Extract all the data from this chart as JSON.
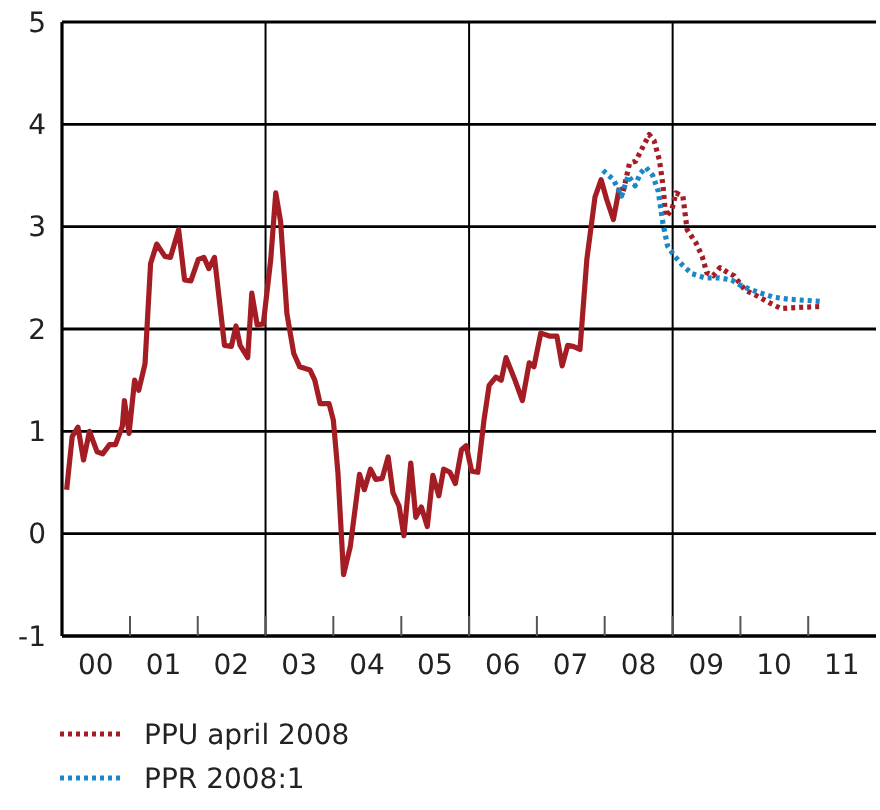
{
  "chart_data": {
    "type": "line",
    "ylim": [
      -1,
      5
    ],
    "yticks": [
      -1,
      0,
      1,
      2,
      3,
      4,
      5
    ],
    "xlim": [
      "2000-01-01",
      "2012-01-01"
    ],
    "xticks": [
      {
        "value": "2000-07-01",
        "label": "00"
      },
      {
        "value": "2001-01-01",
        "label": null
      },
      {
        "value": "2001-07-01",
        "label": "01"
      },
      {
        "value": "2002-01-01",
        "label": null
      },
      {
        "value": "2002-07-01",
        "label": "02"
      },
      {
        "value": "2003-01-01",
        "label": null
      },
      {
        "value": "2003-07-01",
        "label": "03"
      },
      {
        "value": "2004-01-01",
        "label": null
      },
      {
        "value": "2004-07-01",
        "label": "04"
      },
      {
        "value": "2005-01-01",
        "label": null
      },
      {
        "value": "2005-07-01",
        "label": "05"
      },
      {
        "value": "2006-01-01",
        "label": null
      },
      {
        "value": "2006-07-01",
        "label": "06"
      },
      {
        "value": "2007-01-01",
        "label": null
      },
      {
        "value": "2007-07-01",
        "label": "07"
      },
      {
        "value": "2008-01-01",
        "label": null
      },
      {
        "value": "2008-07-01",
        "label": "08"
      },
      {
        "value": "2009-01-01",
        "label": null
      },
      {
        "value": "2009-07-01",
        "label": "09"
      },
      {
        "value": "2010-01-01",
        "label": null
      },
      {
        "value": "2010-07-01",
        "label": "10"
      },
      {
        "value": "2011-01-01",
        "label": null
      },
      {
        "value": "2011-07-01",
        "label": "11"
      }
    ],
    "grid": "y",
    "legend": "bottom",
    "ref_lines": [
      {
        "axis": "x",
        "value": "2003-01-01",
        "color": "#000000"
      },
      {
        "axis": "x",
        "value": "2006-01-01",
        "color": "#000000"
      },
      {
        "axis": "x",
        "value": "2009-01-01",
        "color": "#000000"
      }
    ],
    "series": [
      {
        "color": "#a51d24",
        "line_style": "solid",
        "x": [
          "2000-01-26",
          "2000-02-25",
          "2000-03-27",
          "2000-04-26",
          "2000-05-28",
          "2000-07-08",
          "2000-08-07",
          "2000-09-13",
          "2000-10-15",
          "2000-11-21",
          "2000-12-02",
          "2000-12-27",
          "2001-01-26",
          "2001-02-17",
          "2001-03-23",
          "2001-04-22",
          "2001-05-25",
          "2001-07-08",
          "2001-08-07",
          "2001-09-20",
          "2001-10-22",
          "2001-11-25",
          "2002-01-04",
          "2002-02-03",
          "2002-03-02",
          "2002-04-01",
          "2002-05-25",
          "2002-07-01",
          "2002-07-26",
          "2002-08-17",
          "2002-09-27",
          "2002-10-19",
          "2002-11-17",
          "2002-12-20",
          "2003-01-29",
          "2003-02-25",
          "2003-03-23",
          "2003-04-26",
          "2003-06-02",
          "2003-07-04",
          "2003-08-28",
          "2003-09-23",
          "2003-10-22",
          "2003-12-09",
          "2004-01-01",
          "2004-01-26",
          "2004-02-25",
          "2004-04-01",
          "2004-05-21",
          "2004-06-16",
          "2004-07-19",
          "2004-08-17",
          "2004-09-20",
          "2004-10-22",
          "2004-11-17",
          "2004-12-20",
          "2005-01-15",
          "2005-02-21",
          "2005-03-20",
          "2005-04-19",
          "2005-05-21",
          "2005-06-20",
          "2005-07-22",
          "2005-08-17",
          "2005-09-20",
          "2005-10-19",
          "2005-11-21",
          "2005-12-16",
          "2006-01-15",
          "2006-02-17",
          "2006-03-23",
          "2006-04-19",
          "2006-05-25",
          "2006-06-23",
          "2006-07-19",
          "2006-09-05",
          "2006-10-15",
          "2006-11-21",
          "2006-12-16",
          "2007-01-22",
          "2007-03-13",
          "2007-04-19",
          "2007-05-17",
          "2007-06-16",
          "2007-07-15",
          "2007-08-21",
          "2007-09-27",
          "2007-11-10",
          "2007-12-13",
          "2008-01-11",
          "2008-02-17",
          "2008-03-20"
        ],
        "values": [
          0.43,
          0.95,
          1.04,
          0.72,
          1.0,
          0.8,
          0.78,
          0.87,
          0.87,
          1.05,
          1.3,
          0.98,
          1.5,
          1.4,
          1.66,
          2.64,
          2.83,
          2.71,
          2.7,
          2.97,
          2.48,
          2.47,
          2.68,
          2.7,
          2.59,
          2.7,
          1.84,
          1.83,
          2.03,
          1.84,
          1.72,
          2.35,
          2.04,
          2.05,
          2.68,
          3.33,
          3.05,
          2.15,
          1.76,
          1.63,
          1.6,
          1.5,
          1.27,
          1.27,
          1.11,
          0.59,
          -0.4,
          -0.13,
          0.58,
          0.43,
          0.63,
          0.53,
          0.54,
          0.75,
          0.4,
          0.27,
          -0.02,
          0.69,
          0.16,
          0.26,
          0.07,
          0.57,
          0.37,
          0.63,
          0.6,
          0.49,
          0.82,
          0.86,
          0.61,
          0.6,
          1.12,
          1.45,
          1.53,
          1.5,
          1.72,
          1.5,
          1.3,
          1.67,
          1.63,
          1.96,
          1.93,
          1.93,
          1.64,
          1.84,
          1.83,
          1.8,
          2.68,
          3.29,
          3.46,
          3.27,
          3.07,
          3.38
        ]
      },
      {
        "name": "PPU april 2008",
        "color": "#a51d24",
        "line_style": "dotted",
        "x": [
          "2008-03-20",
          "2008-04-08",
          "2008-05-14",
          "2008-06-16",
          "2008-07-22",
          "2008-08-28",
          "2008-09-23",
          "2008-10-22",
          "2008-11-10",
          "2008-11-25",
          "2008-12-27",
          "2009-01-19",
          "2009-02-25",
          "2009-03-20",
          "2009-05-07",
          "2009-06-09",
          "2009-07-04",
          "2009-08-07",
          "2009-09-13",
          "2009-10-26",
          "2009-11-28",
          "2010-01-26",
          "2010-04-04",
          "2010-06-13",
          "2010-08-07",
          "2010-11-03",
          "2011-03-09"
        ],
        "values": [
          3.38,
          3.33,
          3.62,
          3.64,
          3.77,
          3.9,
          3.84,
          3.65,
          3.4,
          3.1,
          3.16,
          3.33,
          3.3,
          2.97,
          2.84,
          2.71,
          2.55,
          2.52,
          2.6,
          2.55,
          2.52,
          2.38,
          2.32,
          2.25,
          2.2,
          2.21,
          2.22
        ]
      },
      {
        "name": "PPR 2008:1",
        "color": "#1a87c9",
        "line_style": "dotted",
        "x": [
          "2007-12-23",
          "2008-02-17",
          "2008-04-01",
          "2008-05-07",
          "2008-06-13",
          "2008-07-11",
          "2008-08-10",
          "2008-09-16",
          "2008-10-15",
          "2008-11-10",
          "2008-12-05",
          "2009-01-08",
          "2009-02-25",
          "2009-04-15",
          "2009-06-23",
          "2009-09-02",
          "2009-11-14",
          "2010-01-08",
          "2010-04-04",
          "2010-07-01",
          "2010-09-23",
          "2011-03-09"
        ],
        "values": [
          3.55,
          3.46,
          3.3,
          3.5,
          3.4,
          3.52,
          3.58,
          3.5,
          3.35,
          3.03,
          2.81,
          2.72,
          2.62,
          2.54,
          2.5,
          2.5,
          2.48,
          2.42,
          2.36,
          2.31,
          2.29,
          2.27
        ]
      }
    ]
  }
}
